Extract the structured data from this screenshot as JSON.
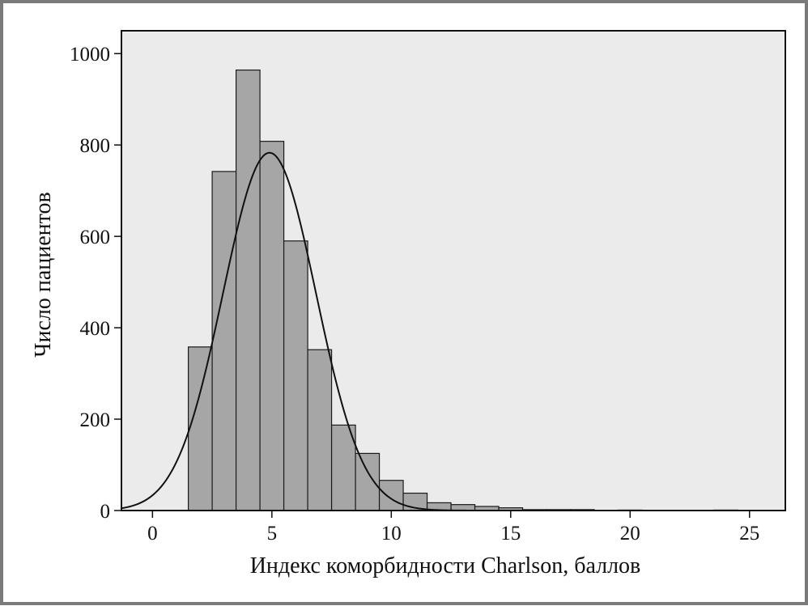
{
  "chart_data": {
    "type": "bar",
    "title": "",
    "xlabel": "Индекс коморбидности Charlson, баллов",
    "ylabel": "Число пациентов",
    "xlim": [
      -1.3,
      26.5
    ],
    "ylim": [
      0,
      1050
    ],
    "xticks": [
      0,
      5,
      10,
      15,
      20,
      25
    ],
    "yticks": [
      0,
      200,
      400,
      600,
      800,
      1000
    ],
    "bin_width": 1,
    "bins": [
      {
        "x": 2,
        "value": 358
      },
      {
        "x": 3,
        "value": 742
      },
      {
        "x": 4,
        "value": 964
      },
      {
        "x": 5,
        "value": 808
      },
      {
        "x": 6,
        "value": 590
      },
      {
        "x": 7,
        "value": 352
      },
      {
        "x": 8,
        "value": 187
      },
      {
        "x": 9,
        "value": 125
      },
      {
        "x": 10,
        "value": 66
      },
      {
        "x": 11,
        "value": 38
      },
      {
        "x": 12,
        "value": 17
      },
      {
        "x": 13,
        "value": 13
      },
      {
        "x": 14,
        "value": 9
      },
      {
        "x": 15,
        "value": 6
      },
      {
        "x": 16,
        "value": 2
      },
      {
        "x": 17,
        "value": 2
      },
      {
        "x": 18,
        "value": 2
      },
      {
        "x": 20,
        "value": 1
      },
      {
        "x": 24,
        "value": 1
      }
    ],
    "normal_curve": {
      "mean": 4.9,
      "sd": 1.95,
      "peak": 783
    },
    "grid": false,
    "legend": "none",
    "colors": {
      "plot_background": "#ebebeb",
      "bar_fill": "#a6a6a6",
      "bar_stroke": "#1a1a1a",
      "curve": "#111111",
      "frame_border": "#7a7a7a"
    }
  }
}
